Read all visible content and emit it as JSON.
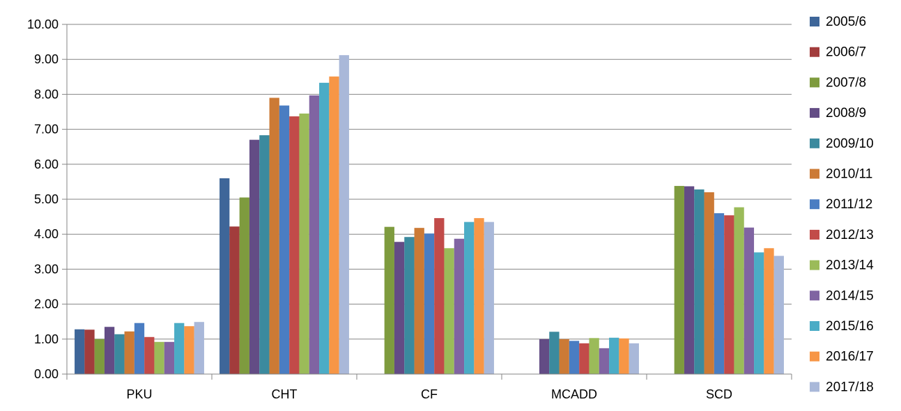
{
  "chart_data": {
    "type": "bar",
    "title": "",
    "xlabel": "",
    "ylabel": "",
    "ylim": [
      0,
      10
    ],
    "yticks": [
      "0.00",
      "1.00",
      "2.00",
      "3.00",
      "4.00",
      "5.00",
      "6.00",
      "7.00",
      "8.00",
      "9.00",
      "10.00"
    ],
    "grid": "horizontal",
    "legend_position": "right",
    "categories": [
      "PKU",
      "CHT",
      "CF",
      "MCADD",
      "SCD"
    ],
    "series": [
      {
        "name": "2005/6",
        "color": "#3E6699",
        "values": [
          1.28,
          5.6,
          null,
          null,
          null
        ]
      },
      {
        "name": "2006/7",
        "color": "#A23C3C",
        "values": [
          1.27,
          4.22,
          null,
          null,
          null
        ]
      },
      {
        "name": "2007/8",
        "color": "#7E9B3E",
        "values": [
          1.0,
          5.05,
          4.21,
          null,
          5.38
        ]
      },
      {
        "name": "2008/9",
        "color": "#634C85",
        "values": [
          1.35,
          6.7,
          3.78,
          1.0,
          5.37
        ]
      },
      {
        "name": "2009/10",
        "color": "#3B8A9E",
        "values": [
          1.14,
          6.83,
          3.92,
          1.21,
          5.28
        ]
      },
      {
        "name": "2010/11",
        "color": "#CC7A35",
        "values": [
          1.22,
          7.9,
          4.18,
          1.0,
          5.2
        ]
      },
      {
        "name": "2011/12",
        "color": "#4A7DC2",
        "values": [
          1.46,
          7.68,
          4.02,
          0.95,
          4.6
        ]
      },
      {
        "name": "2012/13",
        "color": "#C24B49",
        "values": [
          1.06,
          7.37,
          4.46,
          0.88,
          4.54
        ]
      },
      {
        "name": "2013/14",
        "color": "#9BBB59",
        "values": [
          0.92,
          7.45,
          3.6,
          1.03,
          4.77
        ]
      },
      {
        "name": "2014/15",
        "color": "#8064A2",
        "values": [
          0.92,
          7.97,
          3.87,
          0.74,
          4.19
        ]
      },
      {
        "name": "2015/16",
        "color": "#4BACC6",
        "values": [
          1.46,
          8.33,
          4.35,
          1.04,
          3.48
        ]
      },
      {
        "name": "2016/17",
        "color": "#F79646",
        "values": [
          1.37,
          8.51,
          4.46,
          1.02,
          3.6
        ]
      },
      {
        "name": "2017/18",
        "color": "#A9B8D9",
        "values": [
          1.49,
          9.12,
          4.35,
          0.88,
          3.38
        ]
      }
    ]
  }
}
